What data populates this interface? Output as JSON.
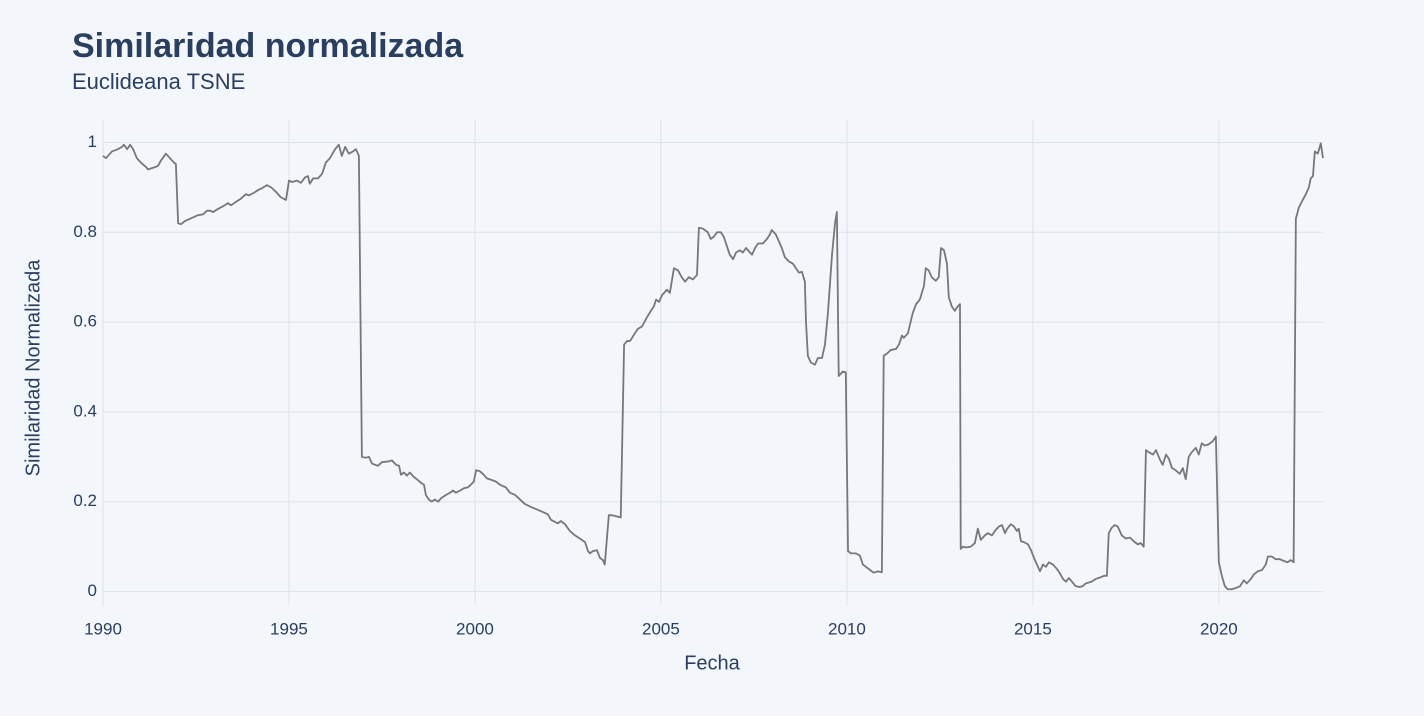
{
  "chart_data": {
    "type": "line",
    "title": "Similaridad normalizada",
    "subtitle": "Euclideana TSNE",
    "x_label": "Fecha",
    "y_label": "Similaridad Normalizada",
    "color": "#777777",
    "grid": true,
    "xlim": [
      1990,
      2022.8
    ],
    "xticks": [
      1990,
      1995,
      2000,
      2005,
      2010,
      2015,
      2020
    ],
    "ylim": [
      -0.03,
      1.05
    ],
    "yticks": [
      0,
      0.2,
      0.4,
      0.6,
      0.8,
      1
    ],
    "x": [
      1990,
      1990.08,
      1990.24,
      1990.4,
      1990.51,
      1990.56,
      1990.65,
      1990.73,
      1990.81,
      1990.91,
      1991.02,
      1991.16,
      1991.21,
      1991.4,
      1991.48,
      1991.56,
      1991.69,
      1991.8,
      1991.91,
      1991.96,
      1992.02,
      1992.1,
      1992.2,
      1992.39,
      1992.55,
      1992.69,
      1992.8,
      1992.88,
      1992.96,
      1993.09,
      1993.23,
      1993.36,
      1993.44,
      1993.58,
      1993.71,
      1993.84,
      1993.92,
      1994.06,
      1994.19,
      1994.27,
      1994.41,
      1994.52,
      1994.65,
      1994.78,
      1994.92,
      1995,
      1995.08,
      1995.22,
      1995.32,
      1995.43,
      1995.51,
      1995.56,
      1995.65,
      1995.78,
      1995.89,
      1995.99,
      1996.1,
      1996.24,
      1996.34,
      1996.42,
      1996.51,
      1996.61,
      1996.72,
      1996.8,
      1996.88,
      1996.96,
      1997.07,
      1997.15,
      1997.23,
      1997.39,
      1997.5,
      1997.69,
      1997.77,
      1997.88,
      1997.96,
      1998.01,
      1998.09,
      1998.17,
      1998.25,
      1998.36,
      1998.47,
      1998.55,
      1998.63,
      1998.68,
      1998.76,
      1998.84,
      1998.92,
      1999.01,
      1999.09,
      1999.22,
      1999.33,
      1999.41,
      1999.49,
      1999.6,
      1999.7,
      1999.81,
      1999.89,
      1999.97,
      2000.03,
      2000.13,
      2000.24,
      2000.32,
      2000.46,
      2000.56,
      2000.67,
      2000.83,
      2000.94,
      2001.08,
      2001.21,
      2001.34,
      2001.51,
      2001.69,
      2001.88,
      2001.96,
      2002.04,
      2002.15,
      2002.23,
      2002.31,
      2002.42,
      2002.55,
      2002.69,
      2002.82,
      2002.96,
      2003.04,
      2003.09,
      2003.17,
      2003.28,
      2003.36,
      2003.44,
      2003.49,
      2003.6,
      2003.68,
      2003.82,
      2003.92,
      2004.01,
      2004.09,
      2004.17,
      2004.3,
      2004.38,
      2004.49,
      2004.62,
      2004.73,
      2004.81,
      2004.87,
      2004.95,
      2005.03,
      2005.16,
      2005.24,
      2005.35,
      2005.46,
      2005.56,
      2005.65,
      2005.75,
      2005.86,
      2005.97,
      2006.02,
      2006.13,
      2006.26,
      2006.34,
      2006.42,
      2006.51,
      2006.61,
      2006.69,
      2006.77,
      2006.85,
      2006.94,
      2007.02,
      2007.12,
      2007.2,
      2007.29,
      2007.34,
      2007.45,
      2007.53,
      2007.61,
      2007.74,
      2007.85,
      2007.93,
      2007.98,
      2008.09,
      2008.17,
      2008.25,
      2008.33,
      2008.44,
      2008.55,
      2008.63,
      2008.71,
      2008.79,
      2008.87,
      2008.9,
      2008.95,
      2009.03,
      2009.14,
      2009.22,
      2009.33,
      2009.41,
      2009.49,
      2009.6,
      2009.68,
      2009.73,
      2009.78,
      2009.89,
      2009.97,
      2010.03,
      2010.11,
      2010.24,
      2010.35,
      2010.43,
      2010.51,
      2010.62,
      2010.72,
      2010.83,
      2010.94,
      2010.99,
      2011.08,
      2011.18,
      2011.32,
      2011.4,
      2011.48,
      2011.53,
      2011.64,
      2011.77,
      2011.86,
      2011.96,
      2012.07,
      2012.12,
      2012.2,
      2012.28,
      2012.39,
      2012.47,
      2012.53,
      2012.61,
      2012.69,
      2012.74,
      2012.82,
      2012.9,
      2012.98,
      2013.04,
      2013.06,
      2013.12,
      2013.2,
      2013.33,
      2013.44,
      2013.52,
      2013.6,
      2013.71,
      2013.79,
      2013.9,
      2013.98,
      2014.09,
      2014.17,
      2014.25,
      2014.31,
      2014.41,
      2014.49,
      2014.57,
      2014.62,
      2014.68,
      2014.76,
      2014.87,
      2014.95,
      2015.03,
      2015.11,
      2015.19,
      2015.27,
      2015.35,
      2015.43,
      2015.54,
      2015.65,
      2015.73,
      2015.81,
      2015.89,
      2015.97,
      2016.05,
      2016.15,
      2016.26,
      2016.34,
      2016.42,
      2016.58,
      2016.69,
      2016.83,
      2016.91,
      2016.99,
      2017.04,
      2017.12,
      2017.2,
      2017.28,
      2017.39,
      2017.5,
      2017.61,
      2017.71,
      2017.82,
      2017.9,
      2017.98,
      2018.04,
      2018.12,
      2018.23,
      2018.31,
      2018.41,
      2018.49,
      2018.58,
      2018.66,
      2018.74,
      2018.84,
      2018.95,
      2019.03,
      2019.11,
      2019.19,
      2019.27,
      2019.38,
      2019.46,
      2019.54,
      2019.62,
      2019.73,
      2019.84,
      2019.92,
      2020,
      2020.08,
      2020.16,
      2020.24,
      2020.35,
      2020.46,
      2020.57,
      2020.67,
      2020.75,
      2020.86,
      2020.94,
      2021.05,
      2021.16,
      2021.26,
      2021.32,
      2021.42,
      2021.53,
      2021.64,
      2021.75,
      2021.85,
      2021.93,
      2022.01,
      2022.07,
      2022.15,
      2022.23,
      2022.34,
      2022.42,
      2022.47,
      2022.53,
      2022.58,
      2022.66,
      2022.74,
      2022.8
    ],
    "values": [
      0.97,
      0.965,
      0.98,
      0.985,
      0.99,
      0.995,
      0.985,
      0.995,
      0.985,
      0.965,
      0.955,
      0.945,
      0.94,
      0.945,
      0.948,
      0.96,
      0.975,
      0.965,
      0.955,
      0.952,
      0.82,
      0.818,
      0.825,
      0.832,
      0.838,
      0.84,
      0.848,
      0.848,
      0.845,
      0.852,
      0.858,
      0.865,
      0.86,
      0.868,
      0.875,
      0.885,
      0.882,
      0.888,
      0.895,
      0.898,
      0.905,
      0.9,
      0.89,
      0.878,
      0.872,
      0.915,
      0.912,
      0.915,
      0.91,
      0.922,
      0.925,
      0.908,
      0.92,
      0.92,
      0.93,
      0.955,
      0.965,
      0.985,
      0.995,
      0.97,
      0.99,
      0.975,
      0.98,
      0.985,
      0.97,
      0.3,
      0.298,
      0.3,
      0.285,
      0.28,
      0.288,
      0.29,
      0.292,
      0.282,
      0.28,
      0.26,
      0.265,
      0.258,
      0.265,
      0.255,
      0.248,
      0.242,
      0.238,
      0.215,
      0.205,
      0.2,
      0.205,
      0.2,
      0.208,
      0.215,
      0.22,
      0.225,
      0.22,
      0.225,
      0.23,
      0.232,
      0.238,
      0.245,
      0.27,
      0.268,
      0.26,
      0.252,
      0.248,
      0.245,
      0.238,
      0.232,
      0.22,
      0.215,
      0.205,
      0.195,
      0.188,
      0.182,
      0.175,
      0.172,
      0.16,
      0.155,
      0.152,
      0.157,
      0.15,
      0.135,
      0.125,
      0.118,
      0.11,
      0.09,
      0.085,
      0.09,
      0.092,
      0.075,
      0.07,
      0.06,
      0.17,
      0.17,
      0.167,
      0.165,
      0.55,
      0.558,
      0.558,
      0.575,
      0.585,
      0.59,
      0.61,
      0.625,
      0.635,
      0.65,
      0.645,
      0.66,
      0.672,
      0.665,
      0.72,
      0.715,
      0.7,
      0.69,
      0.7,
      0.695,
      0.705,
      0.81,
      0.808,
      0.8,
      0.785,
      0.79,
      0.8,
      0.8,
      0.79,
      0.77,
      0.75,
      0.74,
      0.755,
      0.76,
      0.755,
      0.765,
      0.76,
      0.75,
      0.765,
      0.775,
      0.775,
      0.785,
      0.795,
      0.805,
      0.795,
      0.78,
      0.765,
      0.745,
      0.735,
      0.73,
      0.72,
      0.71,
      0.712,
      0.69,
      0.6,
      0.525,
      0.51,
      0.505,
      0.52,
      0.52,
      0.55,
      0.62,
      0.75,
      0.82,
      0.845,
      0.48,
      0.49,
      0.488,
      0.09,
      0.085,
      0.085,
      0.08,
      0.06,
      0.055,
      0.048,
      0.042,
      0.045,
      0.043,
      0.525,
      0.53,
      0.538,
      0.54,
      0.55,
      0.57,
      0.565,
      0.575,
      0.62,
      0.64,
      0.65,
      0.68,
      0.72,
      0.715,
      0.7,
      0.692,
      0.7,
      0.765,
      0.76,
      0.73,
      0.655,
      0.635,
      0.625,
      0.635,
      0.64,
      0.095,
      0.1,
      0.098,
      0.1,
      0.108,
      0.14,
      0.115,
      0.125,
      0.13,
      0.125,
      0.135,
      0.145,
      0.148,
      0.13,
      0.14,
      0.15,
      0.145,
      0.135,
      0.14,
      0.112,
      0.11,
      0.105,
      0.092,
      0.075,
      0.06,
      0.045,
      0.06,
      0.055,
      0.065,
      0.06,
      0.05,
      0.04,
      0.028,
      0.022,
      0.03,
      0.022,
      0.012,
      0.01,
      0.012,
      0.018,
      0.022,
      0.028,
      0.032,
      0.035,
      0.035,
      0.13,
      0.142,
      0.148,
      0.145,
      0.125,
      0.118,
      0.12,
      0.112,
      0.105,
      0.108,
      0.1,
      0.315,
      0.31,
      0.305,
      0.315,
      0.295,
      0.282,
      0.305,
      0.295,
      0.275,
      0.27,
      0.262,
      0.275,
      0.25,
      0.3,
      0.31,
      0.32,
      0.305,
      0.33,
      0.325,
      0.328,
      0.335,
      0.345,
      0.065,
      0.035,
      0.012,
      0.005,
      0.005,
      0.008,
      0.012,
      0.025,
      0.018,
      0.028,
      0.038,
      0.045,
      0.048,
      0.06,
      0.078,
      0.078,
      0.072,
      0.072,
      0.068,
      0.065,
      0.07,
      0.065,
      0.83,
      0.855,
      0.868,
      0.885,
      0.9,
      0.92,
      0.925,
      0.98,
      0.975,
      0.998,
      0.965
    ]
  }
}
